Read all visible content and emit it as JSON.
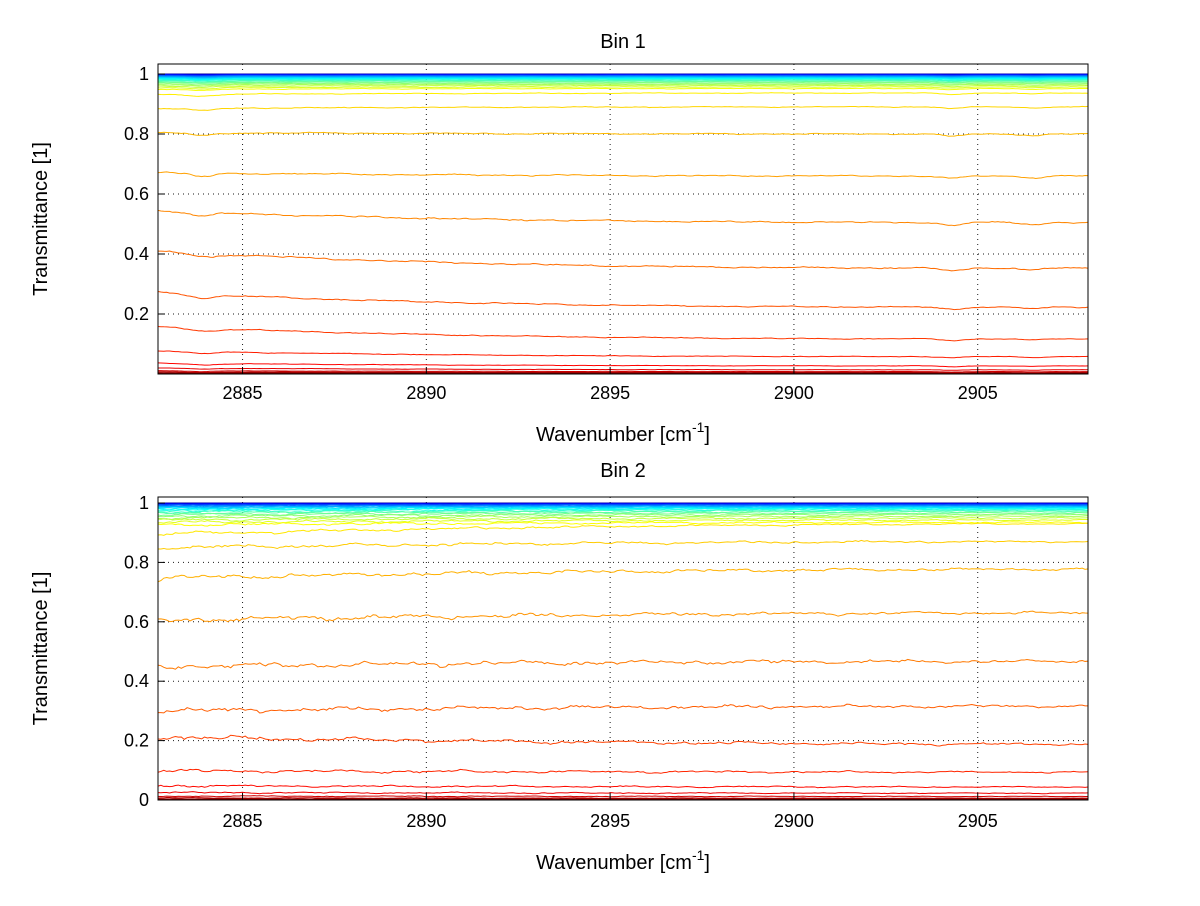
{
  "figure": {
    "background": "#ffffff",
    "axis_color": "#000000",
    "grid_color": "#1a1a1a",
    "text_color": "#000000",
    "colormap": "jet",
    "grid_style": "dotted"
  },
  "chart_data": [
    {
      "type": "line",
      "title": "Bin 1",
      "xlabel_base": "Wavenumber [cm",
      "xlabel_sup": "-1",
      "xlabel_close": "]",
      "ylabel": "Transmittance [1]",
      "xlim": [
        2882.7,
        2908.0
      ],
      "ylim": [
        0.0,
        1.0333
      ],
      "xticks": [
        2885,
        2890,
        2895,
        2900,
        2905
      ],
      "xtick_labels": [
        "2885",
        "2890",
        "2895",
        "2900",
        "2905"
      ],
      "ytick_values": [
        0.2,
        0.4,
        0.6,
        0.8,
        1
      ],
      "ytick_labels": [
        "0.2",
        "0.4",
        "0.6",
        "0.8",
        "1"
      ],
      "grid": "dotted",
      "legend": "none",
      "series_note": "stack of transmittance spectra, highest T drawn in dark blue through jet colormap to dark red at lowest T; each entry is [value at left edge, value at right edge]",
      "lines_left_right": [
        [
          1.0,
          1.0
        ],
        [
          0.9996,
          0.9996
        ],
        [
          0.9991,
          0.9992
        ],
        [
          0.9986,
          0.9987
        ],
        [
          0.998,
          0.9981
        ],
        [
          0.9973,
          0.9974
        ],
        [
          0.9965,
          0.9967
        ],
        [
          0.9956,
          0.9958
        ],
        [
          0.9946,
          0.9949
        ],
        [
          0.9935,
          0.9938
        ],
        [
          0.9922,
          0.9926
        ],
        [
          0.9908,
          0.9912
        ],
        [
          0.9892,
          0.9897
        ],
        [
          0.9874,
          0.988
        ],
        [
          0.9854,
          0.9861
        ],
        [
          0.9832,
          0.984
        ],
        [
          0.9807,
          0.9816
        ],
        [
          0.978,
          0.979
        ],
        [
          0.975,
          0.9761
        ],
        [
          0.9717,
          0.9729
        ],
        [
          0.968,
          0.9694
        ],
        [
          0.964,
          0.9655
        ],
        [
          0.9596,
          0.9613
        ],
        [
          0.9548,
          0.9566
        ],
        [
          0.9495,
          0.9515
        ],
        [
          0.932,
          0.9365
        ],
        [
          0.885,
          0.8905
        ],
        [
          0.805,
          0.8
        ],
        [
          0.672,
          0.66
        ],
        [
          0.545,
          0.505
        ],
        [
          0.41,
          0.353
        ],
        [
          0.272,
          0.223
        ],
        [
          0.158,
          0.117
        ],
        [
          0.077,
          0.058
        ],
        [
          0.036,
          0.027
        ],
        [
          0.02,
          0.014
        ],
        [
          0.011,
          0.008
        ],
        [
          0.007,
          0.005
        ],
        [
          0.0045,
          0.0035
        ],
        [
          0.0025,
          0.002
        ]
      ],
      "dips": [
        {
          "center": 2883.9,
          "sigma": 0.35,
          "depth": 0.013
        },
        {
          "center": 2904.3,
          "sigma": 0.3,
          "depth": 0.009
        },
        {
          "center": 2906.5,
          "sigma": 0.25,
          "depth": 0.007
        }
      ],
      "noise_amp": 0.0022,
      "noise_left_boost": 0.4,
      "trend_exponent": 3
    },
    {
      "type": "line",
      "title": "Bin 2",
      "xlabel_base": "Wavenumber [cm",
      "xlabel_sup": "-1",
      "xlabel_close": "]",
      "ylabel": "Transmittance [1]",
      "xlim": [
        2882.7,
        2908.0
      ],
      "ylim": [
        0.0,
        1.0202
      ],
      "xticks": [
        2885,
        2890,
        2895,
        2900,
        2905
      ],
      "xtick_labels": [
        "2885",
        "2890",
        "2895",
        "2900",
        "2905"
      ],
      "ytick_values": [
        0,
        0.2,
        0.4,
        0.6,
        0.8,
        1
      ],
      "ytick_labels": [
        "0",
        "0.2",
        "0.4",
        "0.6",
        "0.8",
        "1"
      ],
      "grid": "dotted",
      "legend": "none",
      "series_note": "stack of transmittance spectra, noisier at the left edge and rising slightly toward the right; jet colormap from dark blue (T near 1) to dark red (T near 0)",
      "lines_left_right": [
        [
          1.0,
          1.0
        ],
        [
          0.9995,
          0.9996
        ],
        [
          0.9989,
          0.9991
        ],
        [
          0.9982,
          0.9985
        ],
        [
          0.9974,
          0.9978
        ],
        [
          0.9964,
          0.9969
        ],
        [
          0.9953,
          0.9959
        ],
        [
          0.994,
          0.9948
        ],
        [
          0.9925,
          0.9935
        ],
        [
          0.9908,
          0.992
        ],
        [
          0.9889,
          0.9903
        ],
        [
          0.9867,
          0.9884
        ],
        [
          0.9842,
          0.9862
        ],
        [
          0.9814,
          0.9838
        ],
        [
          0.9782,
          0.981
        ],
        [
          0.9747,
          0.9779
        ],
        [
          0.9707,
          0.9744
        ],
        [
          0.9663,
          0.9705
        ],
        [
          0.9613,
          0.9661
        ],
        [
          0.9558,
          0.9611
        ],
        [
          0.9496,
          0.9556
        ],
        [
          0.9428,
          0.9494
        ],
        [
          0.9352,
          0.9426
        ],
        [
          0.9268,
          0.935
        ],
        [
          0.895,
          0.93
        ],
        [
          0.85,
          0.87
        ],
        [
          0.747,
          0.777
        ],
        [
          0.605,
          0.63
        ],
        [
          0.45,
          0.467
        ],
        [
          0.3,
          0.316
        ],
        [
          0.212,
          0.188
        ],
        [
          0.098,
          0.094
        ],
        [
          0.048,
          0.044
        ],
        [
          0.025,
          0.023
        ],
        [
          0.013,
          0.012
        ],
        [
          0.007,
          0.006
        ],
        [
          0.004,
          0.004
        ],
        [
          0.002,
          0.002
        ]
      ],
      "dips": [],
      "noise_amp": 0.0045,
      "noise_left_boost": 1.2,
      "trend_exponent": 2
    }
  ]
}
